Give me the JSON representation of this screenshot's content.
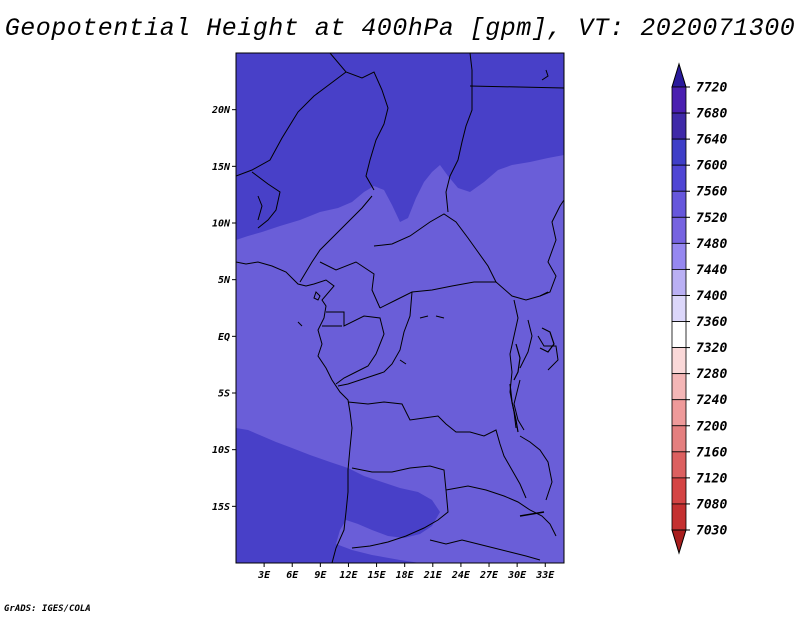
{
  "title": "Geopotential Height at 400hPa [gpm], VT: 2020071300",
  "credit": "GrADS: IGES/COLA",
  "map": {
    "lon_range": [
      0,
      35
    ],
    "lat_range": [
      -20,
      25
    ],
    "lon_ticks": [
      {
        "value": 3,
        "label": "3E"
      },
      {
        "value": 6,
        "label": "6E"
      },
      {
        "value": 9,
        "label": "9E"
      },
      {
        "value": 12,
        "label": "12E"
      },
      {
        "value": 15,
        "label": "15E"
      },
      {
        "value": 18,
        "label": "18E"
      },
      {
        "value": 21,
        "label": "21E"
      },
      {
        "value": 24,
        "label": "24E"
      },
      {
        "value": 27,
        "label": "27E"
      },
      {
        "value": 30,
        "label": "30E"
      },
      {
        "value": 33,
        "label": "33E"
      }
    ],
    "lat_ticks": [
      {
        "value": 20,
        "label": "20N"
      },
      {
        "value": 15,
        "label": "15N"
      },
      {
        "value": 10,
        "label": "10N"
      },
      {
        "value": 5,
        "label": "5N"
      },
      {
        "value": 0,
        "label": "EQ"
      },
      {
        "value": -5,
        "label": "5S"
      },
      {
        "value": -10,
        "label": "10S"
      },
      {
        "value": -15,
        "label": "15S"
      }
    ]
  },
  "colorbar": {
    "levels": [
      {
        "label": "7720",
        "color": "#4a1fb0"
      },
      {
        "label": "7680",
        "color": "#3f2aa8"
      },
      {
        "label": "7640",
        "color": "#3f3fc8"
      },
      {
        "label": "7600",
        "color": "#5046d4"
      },
      {
        "label": "7560",
        "color": "#6657dc"
      },
      {
        "label": "7520",
        "color": "#7663e0"
      },
      {
        "label": "7480",
        "color": "#9688f0"
      },
      {
        "label": "7440",
        "color": "#bab0f4"
      },
      {
        "label": "7400",
        "color": "#dcd7fa"
      },
      {
        "label": "7360",
        "color": "#ffffff"
      },
      {
        "label": "7320",
        "color": "#fad8d8"
      },
      {
        "label": "7280",
        "color": "#f4b6b6"
      },
      {
        "label": "7240",
        "color": "#ee9a9a"
      },
      {
        "label": "7200",
        "color": "#e47f7f"
      },
      {
        "label": "7160",
        "color": "#dc6060"
      },
      {
        "label": "7120",
        "color": "#d44444"
      },
      {
        "label": "7080",
        "color": "#c43030"
      },
      {
        "label": "7030",
        "color": "#b02424"
      }
    ],
    "top_color": "#2a1a9c",
    "bottom_color": "#a81e1e"
  },
  "field_colors": {
    "level_7600": "#4840c8",
    "level_7560": "#6a5ed8"
  }
}
